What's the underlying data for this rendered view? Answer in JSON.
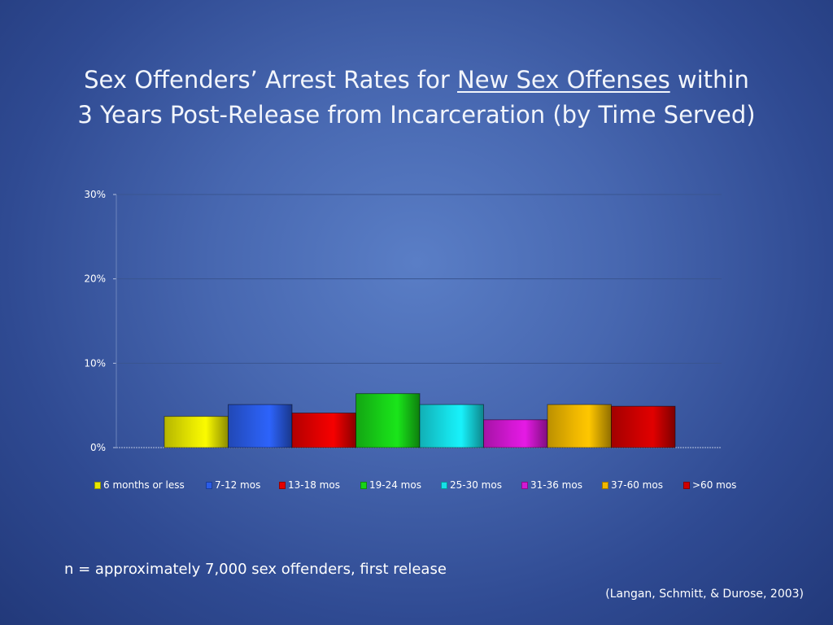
{
  "slide": {
    "title_pre": "Sex Offenders’ Arrest Rates for ",
    "title_underlined": "New Sex Offenses",
    "title_post": " within",
    "title_line2": "3 Years Post-Release from Incarceration (by Time Served)",
    "note": "n = approximately 7,000 sex offenders, first release",
    "citation": "(Langan, Schmitt, & Durose, 2003)"
  },
  "chart_data": {
    "type": "bar",
    "title": "",
    "xlabel": "",
    "ylabel": "",
    "ylim": [
      0,
      30
    ],
    "yticks": [
      0,
      10,
      20,
      30
    ],
    "ytick_labels": [
      "0%",
      "10%",
      "20%",
      "30%"
    ],
    "grid": true,
    "legend_position": "bottom",
    "series": [
      {
        "name": "6 months or less",
        "value": 3.7,
        "color": "#e8e800"
      },
      {
        "name": "7-12 mos",
        "value": 5.1,
        "color": "#2a5ce8"
      },
      {
        "name": "13-18 mos",
        "value": 4.1,
        "color": "#e40000"
      },
      {
        "name": "19-24 mos",
        "value": 6.4,
        "color": "#18d418"
      },
      {
        "name": "25-30 mos",
        "value": 5.1,
        "color": "#16e0e8"
      },
      {
        "name": "31-36 mos",
        "value": 3.3,
        "color": "#d418d4"
      },
      {
        "name": "37-60 mos",
        "value": 5.1,
        "color": "#f0b800"
      },
      {
        "name": ">60 mos",
        "value": 4.9,
        "color": "#d00000"
      }
    ]
  }
}
